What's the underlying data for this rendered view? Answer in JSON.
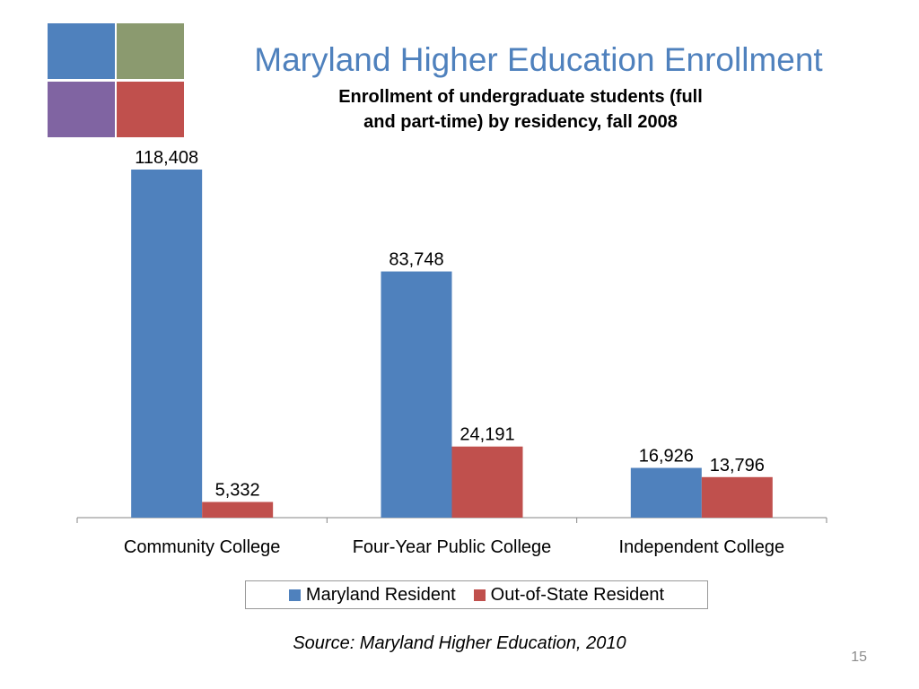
{
  "slide": {
    "title": "Maryland Higher Education Enrollment",
    "source": "Source: Maryland Higher Education, 2010",
    "page_number": "15"
  },
  "logo": {
    "colors": [
      "#4f81bd",
      "#8b9a6f",
      "#8064a2",
      "#c0504d"
    ]
  },
  "chart_data": {
    "type": "bar",
    "title_lines": [
      "Enrollment of undergraduate students (full",
      "and part-time) by residency, fall 2008"
    ],
    "categories": [
      "Community College",
      "Four-Year Public College",
      "Independent College"
    ],
    "series": [
      {
        "name": "Maryland Resident",
        "values": [
          118408,
          83748,
          16926
        ],
        "labels": [
          "118,408",
          "83,748",
          "16,926"
        ],
        "color": "#4f81bd"
      },
      {
        "name": "Out-of-State Resident",
        "values": [
          5332,
          24191,
          13796
        ],
        "labels": [
          "5,332",
          "24,191",
          "13,796"
        ],
        "color": "#c0504d"
      }
    ],
    "xlabel": "",
    "ylabel": "",
    "ylim": [
      0,
      118408
    ],
    "grid": false,
    "y_axis_visible": false,
    "legend_position": "bottom"
  }
}
